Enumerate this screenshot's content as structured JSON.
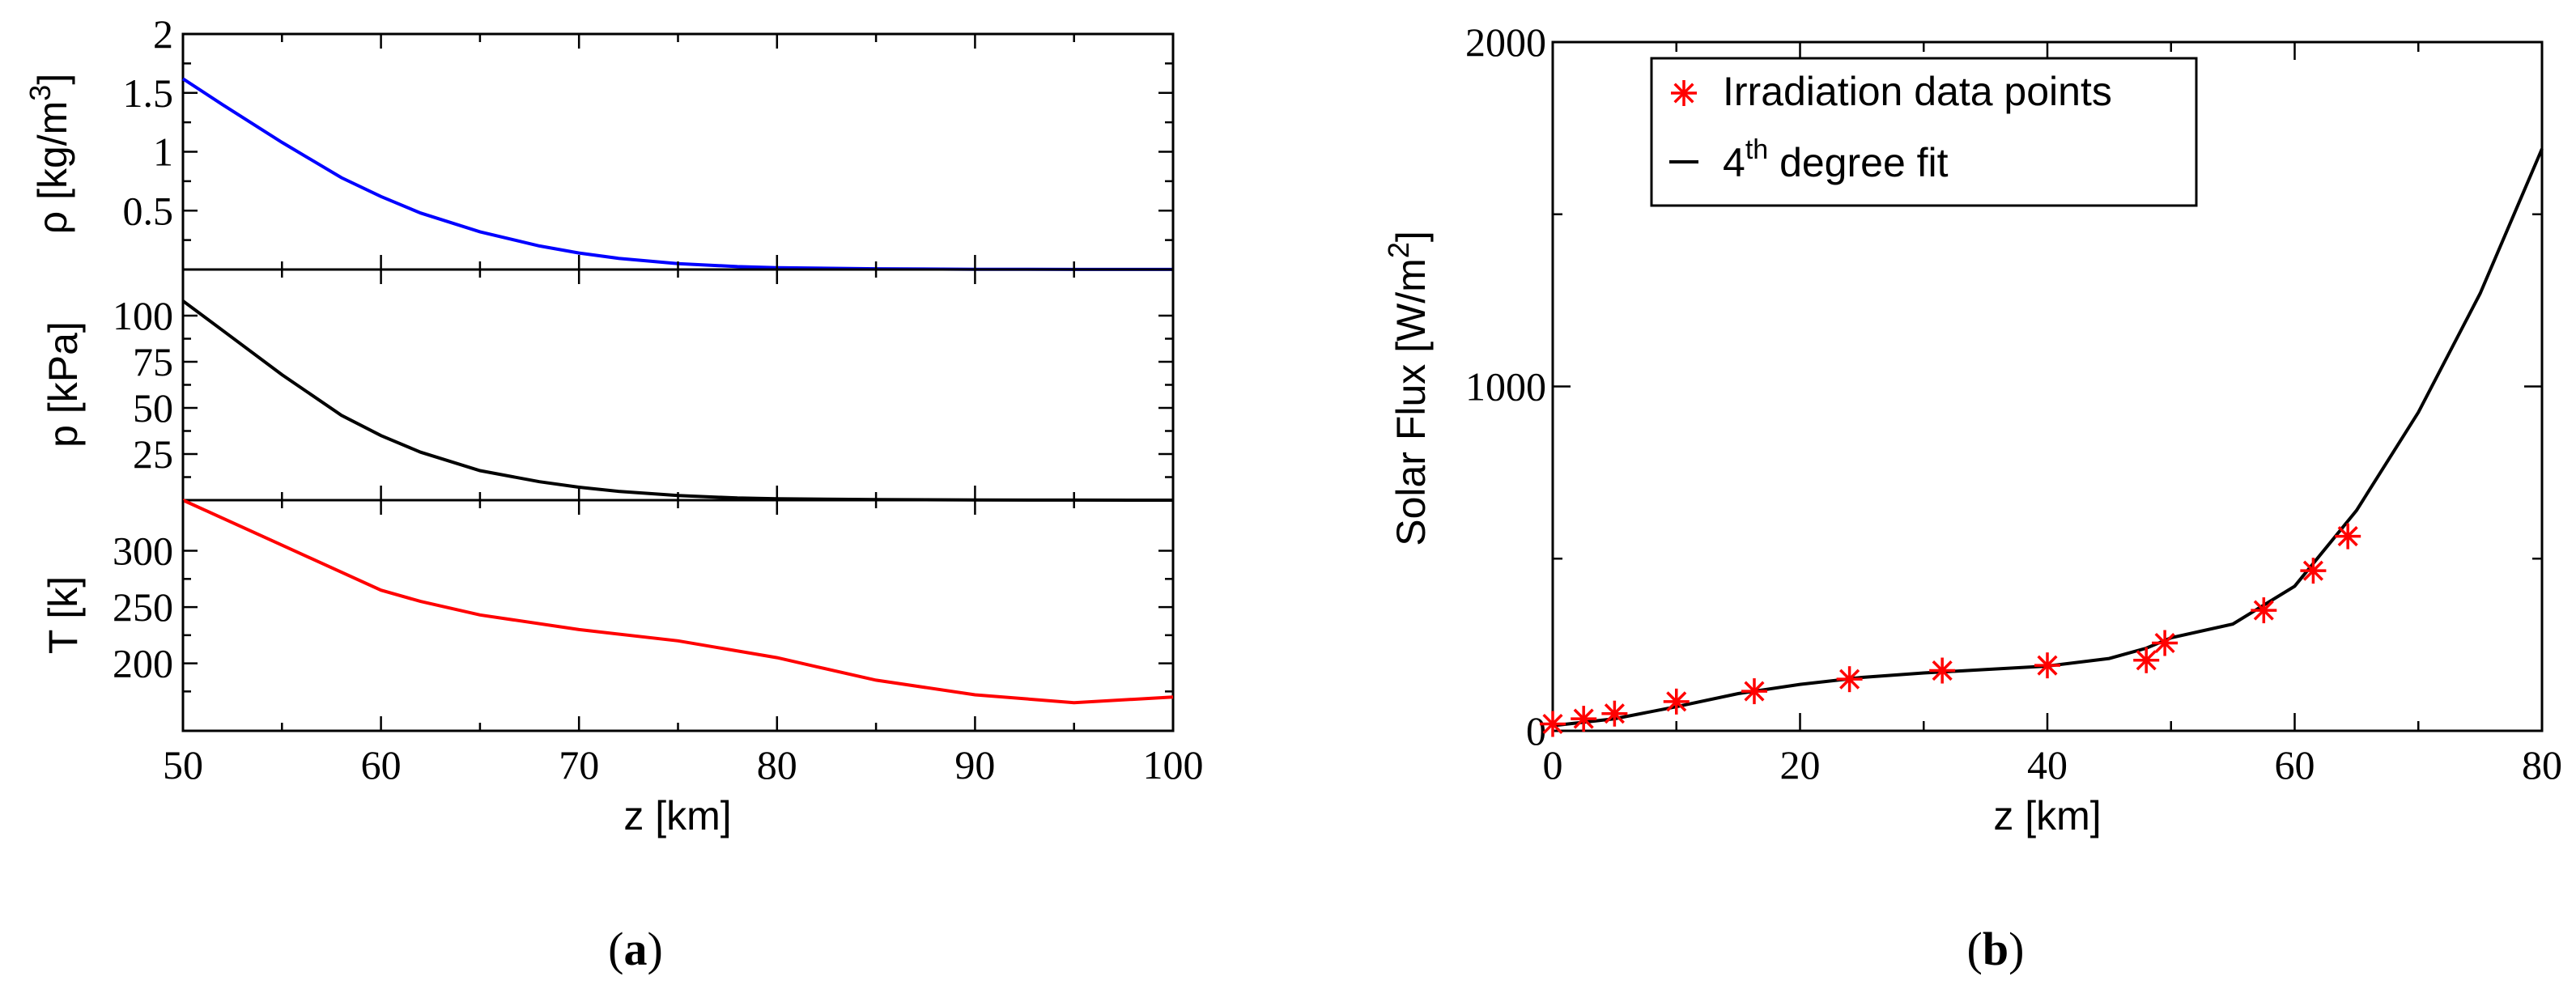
{
  "chart_data": [
    {
      "type": "line",
      "caption_open": "(",
      "caption_letter": "a",
      "caption_close": ")",
      "xlabel": "z [km]",
      "xlim": [
        50,
        100
      ],
      "xticks": [
        "50",
        "60",
        "70",
        "80",
        "90",
        "100"
      ],
      "panels": [
        {
          "ylabel": "ρ [kg/m",
          "ylabel_sup": "3",
          "ylabel_close": "]",
          "ylim": [
            0,
            2
          ],
          "yticks": [
            "0.5",
            "1",
            "1.5",
            "2"
          ],
          "color": "#0000ff",
          "x": [
            50,
            52,
            55,
            58,
            60,
            62,
            65,
            68,
            70,
            72,
            75,
            78,
            80,
            85,
            90,
            95,
            100
          ],
          "y": [
            1.62,
            1.4,
            1.08,
            0.78,
            0.62,
            0.48,
            0.32,
            0.2,
            0.14,
            0.095,
            0.05,
            0.025,
            0.016,
            0.006,
            0.002,
            0.001,
            0.0005
          ]
        },
        {
          "ylabel": "p [kPa]",
          "ylim": [
            0,
            125
          ],
          "yticks": [
            "25",
            "50",
            "75",
            "100"
          ],
          "color": "#000000",
          "x": [
            50,
            52,
            55,
            58,
            60,
            62,
            65,
            68,
            70,
            72,
            75,
            78,
            80,
            85,
            90,
            95,
            100
          ],
          "y": [
            108,
            92,
            68,
            46,
            35,
            26,
            16,
            10,
            7,
            4.8,
            2.5,
            1.2,
            0.8,
            0.3,
            0.1,
            0.03,
            0.01
          ]
        },
        {
          "ylabel": "T [k]",
          "ylim": [
            140,
            345
          ],
          "yticks": [
            "200",
            "250",
            "300"
          ],
          "color": "#ff0000",
          "x": [
            50,
            55,
            60,
            62,
            65,
            70,
            75,
            80,
            82,
            85,
            90,
            95,
            100
          ],
          "y": [
            345,
            305,
            265,
            255,
            243,
            230,
            220,
            205,
            197,
            185,
            172,
            165,
            170
          ]
        }
      ]
    },
    {
      "type": "scatter",
      "caption_open": "(",
      "caption_letter": "b",
      "caption_close": ")",
      "xlabel": "z [km]",
      "ylabel": "Solar Flux [W/m",
      "ylabel_sup": "2",
      "ylabel_close": "]",
      "xlim": [
        0,
        80
      ],
      "ylim": [
        0,
        2000
      ],
      "xticks": [
        "0",
        "20",
        "40",
        "60",
        "80"
      ],
      "yticks": [
        "0",
        "1000",
        "2000"
      ],
      "series": [
        {
          "name": "Irradiation data points",
          "marker": "asterisk",
          "color": "#ff0000",
          "x": [
            0,
            2.5,
            5,
            10,
            16.3,
            24,
            31.5,
            40,
            48,
            49.5,
            57.5,
            61.5,
            64.3
          ],
          "y": [
            20,
            35,
            50,
            85,
            115,
            150,
            175,
            190,
            205,
            255,
            350,
            465,
            565
          ]
        },
        {
          "name": "4",
          "name_sup": "th",
          "name_rest": " degree fit",
          "marker": "line",
          "color": "#000000",
          "x": [
            0,
            5,
            10,
            15,
            20,
            25,
            30,
            35,
            40,
            45,
            48,
            50,
            55,
            60,
            65,
            70,
            75,
            80
          ],
          "y": [
            15,
            35,
            70,
            108,
            135,
            155,
            168,
            178,
            188,
            210,
            240,
            270,
            310,
            420,
            640,
            925,
            1270,
            1690
          ]
        }
      ],
      "legend_position": "top-left"
    }
  ]
}
